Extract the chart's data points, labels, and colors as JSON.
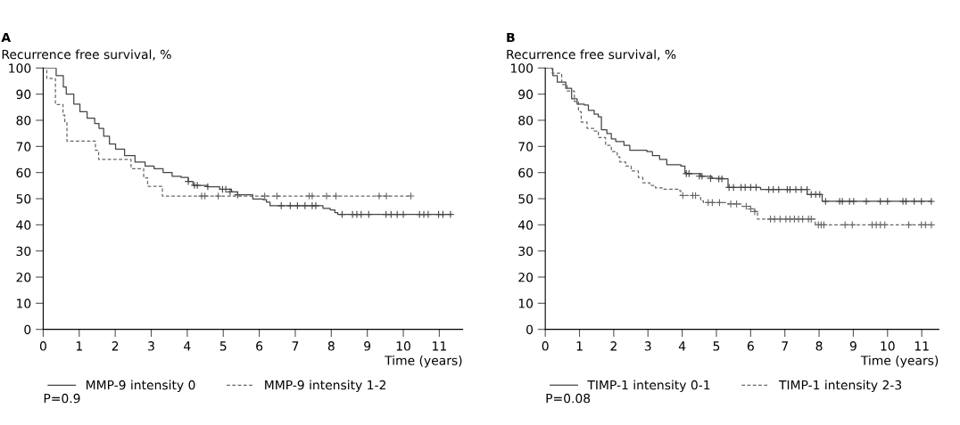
{
  "chart_data": [
    {
      "type": "step",
      "title": "A",
      "ylabel": "Recurrence free survival, %",
      "xlabel": "Time (years)",
      "xlim": [
        0,
        11.65
      ],
      "ylim": [
        0,
        100
      ],
      "xticks": [
        0,
        1,
        2,
        3,
        4,
        5,
        6,
        7,
        8,
        9,
        10,
        11
      ],
      "yticks": [
        0,
        10,
        20,
        30,
        40,
        50,
        60,
        70,
        80,
        90,
        100
      ],
      "legend": "bottom",
      "annotations": [
        "P=0.9"
      ],
      "series": [
        {
          "name": "MMP-9 intensity 0",
          "line_style": "solid",
          "color": "#444444",
          "x": [
            0,
            0.36,
            0.56,
            0.64,
            0.85,
            1.02,
            1.22,
            1.43,
            1.55,
            1.68,
            1.84,
            2.01,
            2.26,
            2.55,
            2.83,
            3.08,
            3.33,
            3.58,
            3.83,
            4.03,
            4.16,
            4.57,
            4.9,
            5.23,
            5.4,
            5.82,
            6.11,
            6.2,
            6.3,
            7.77,
            7.97,
            8.1,
            8.18,
            11.31
          ],
          "values": [
            100,
            97.1,
            92.7,
            90,
            86.2,
            83.3,
            80.8,
            78.8,
            76.9,
            73.9,
            70.9,
            69,
            66.5,
            64,
            62.5,
            61.5,
            60,
            58.6,
            58.1,
            56.6,
            55.1,
            54.6,
            53.6,
            52.6,
            51.5,
            49.9,
            49.6,
            48.7,
            47.3,
            46.3,
            45.7,
            44.7,
            44,
            44
          ]
        },
        {
          "name": "MMP-9 intensity 1-2",
          "line_style": "dashed",
          "color": "#666666",
          "x": [
            0,
            0.1,
            0.34,
            0.55,
            0.6,
            0.66,
            1.45,
            1.54,
            2.44,
            2.79,
            2.9,
            3.31,
            10.21
          ],
          "values": [
            100,
            96,
            86,
            82,
            79,
            72,
            68.5,
            65,
            61.5,
            58,
            54.7,
            51,
            51
          ]
        },
        {
          "type": "scatter",
          "marker": "cross",
          "color": "#444444",
          "x": [
            4.03,
            4.2,
            4.28,
            4.57,
            4.98,
            5.07,
            5.19,
            5.4,
            6.61,
            6.86,
            7.06,
            7.27,
            7.47,
            7.57,
            8.3,
            8.59,
            8.71,
            8.83,
            9.04,
            9.52,
            9.66,
            9.83,
            10.0,
            10.45,
            10.57,
            10.69,
            10.98,
            11.1,
            11.31
          ],
          "values": [
            56.6,
            55.1,
            55.1,
            54.6,
            53.6,
            53.6,
            52.6,
            51.5,
            47.3,
            47.3,
            47.3,
            47.3,
            47.3,
            47.3,
            44,
            44,
            44,
            44,
            44,
            44,
            44,
            44,
            44,
            44,
            44,
            44,
            44,
            44,
            44
          ]
        },
        {
          "type": "scatter",
          "marker": "cross",
          "color": "#666666",
          "x": [
            4.4,
            4.49,
            4.86,
            6.15,
            6.49,
            7.39,
            7.47,
            7.87,
            8.13,
            9.33,
            9.53,
            10.21
          ],
          "values": [
            51,
            51,
            51,
            51,
            51,
            51,
            51,
            51,
            51,
            51,
            51,
            51
          ]
        }
      ]
    },
    {
      "type": "step",
      "title": "B",
      "ylabel": "Recurrence free survival, %",
      "xlabel": "Time (years)",
      "xlim": [
        0,
        11.5
      ],
      "ylim": [
        0,
        100
      ],
      "xticks": [
        0,
        1,
        2,
        3,
        4,
        5,
        6,
        7,
        8,
        9,
        10,
        11
      ],
      "yticks": [
        0,
        10,
        20,
        30,
        40,
        50,
        60,
        70,
        80,
        90,
        100
      ],
      "legend": "bottom",
      "annotations": [
        "P=0.08"
      ],
      "series": [
        {
          "name": "TIMP-1 intensity 0-1",
          "line_style": "solid",
          "color": "#444444",
          "x": [
            0,
            0.22,
            0.35,
            0.6,
            0.77,
            0.93,
            1.14,
            1.26,
            1.43,
            1.55,
            1.64,
            1.8,
            1.93,
            2.06,
            2.3,
            2.47,
            2.97,
            3.13,
            3.34,
            3.55,
            3.96,
            4.08,
            4.12,
            4.54,
            4.87,
            5.2,
            5.34,
            6.29,
            7.65,
            8.09,
            11.28
          ],
          "values": [
            100,
            97.1,
            94.6,
            92.2,
            88.2,
            86.2,
            85.8,
            83.8,
            82.3,
            81.3,
            76.4,
            74.9,
            72.9,
            71.9,
            70.4,
            68.5,
            68,
            66.5,
            65,
            63,
            62.5,
            60,
            59.6,
            58.6,
            57.8,
            57.6,
            54.3,
            53.5,
            51.6,
            49,
            49
          ]
        },
        {
          "name": "TIMP-1 intensity 2-3",
          "line_style": "dashed",
          "color": "#666666",
          "x": [
            0,
            0.2,
            0.48,
            0.64,
            0.85,
            0.97,
            1.05,
            1.22,
            1.43,
            1.55,
            1.76,
            1.93,
            2.1,
            2.18,
            2.35,
            2.51,
            2.72,
            2.85,
            3.05,
            3.22,
            3.47,
            3.88,
            3.96,
            4.54,
            4.62,
            5.34,
            5.75,
            5.99,
            6.12,
            6.2,
            7.89,
            11.28
          ],
          "values": [
            100,
            98,
            93.7,
            91.2,
            87.2,
            83.3,
            79.3,
            76.9,
            75.9,
            73.4,
            70.4,
            68,
            66,
            64,
            62.5,
            60.6,
            58.1,
            56.1,
            55.1,
            54.1,
            53.6,
            53.1,
            51.2,
            49.2,
            48.5,
            48,
            47.1,
            46.1,
            45.1,
            42.2,
            40,
            40
          ]
        },
        {
          "type": "scatter",
          "marker": "cross",
          "color": "#444444",
          "x": [
            4.12,
            4.2,
            4.5,
            4.58,
            4.83,
            5.07,
            5.16,
            5.37,
            5.5,
            5.72,
            5.84,
            6.0,
            6.16,
            6.53,
            6.66,
            6.82,
            7.07,
            7.15,
            7.32,
            7.48,
            7.65,
            7.77,
            7.9,
            8.02,
            8.19,
            8.6,
            8.68,
            8.89,
            9.01,
            9.38,
            9.79,
            10.0,
            10.45,
            10.54,
            10.78,
            10.99,
            11.28
          ],
          "values": [
            59.6,
            59.6,
            58.6,
            58.6,
            57.8,
            57.6,
            57.6,
            54.3,
            54.3,
            54.3,
            54.3,
            54.3,
            54.3,
            53.5,
            53.5,
            53.5,
            53.5,
            53.5,
            53.5,
            53.5,
            53.5,
            51.6,
            51.6,
            51.6,
            49,
            49,
            49,
            49,
            49,
            49,
            49,
            49,
            49,
            49,
            49,
            49,
            49
          ]
        },
        {
          "type": "scatter",
          "marker": "cross",
          "color": "#666666",
          "x": [
            4.02,
            4.31,
            4.39,
            4.76,
            4.88,
            5.09,
            5.42,
            5.59,
            5.87,
            6.0,
            6.12,
            6.58,
            6.7,
            6.86,
            7.03,
            7.15,
            7.28,
            7.4,
            7.52,
            7.69,
            7.77,
            7.98,
            8.06,
            8.14,
            8.76,
            8.97,
            9.55,
            9.67,
            9.79,
            9.92,
            10.62,
            10.99,
            11.11,
            11.28
          ],
          "values": [
            51.2,
            51.2,
            51.2,
            48.5,
            48.5,
            48.5,
            48,
            48,
            47.1,
            46.1,
            45.1,
            42.2,
            42.2,
            42.2,
            42.2,
            42.2,
            42.2,
            42.2,
            42.2,
            42.2,
            42.2,
            40,
            40,
            40,
            40,
            40,
            40,
            40,
            40,
            40,
            40,
            40,
            40,
            40
          ]
        }
      ]
    }
  ]
}
